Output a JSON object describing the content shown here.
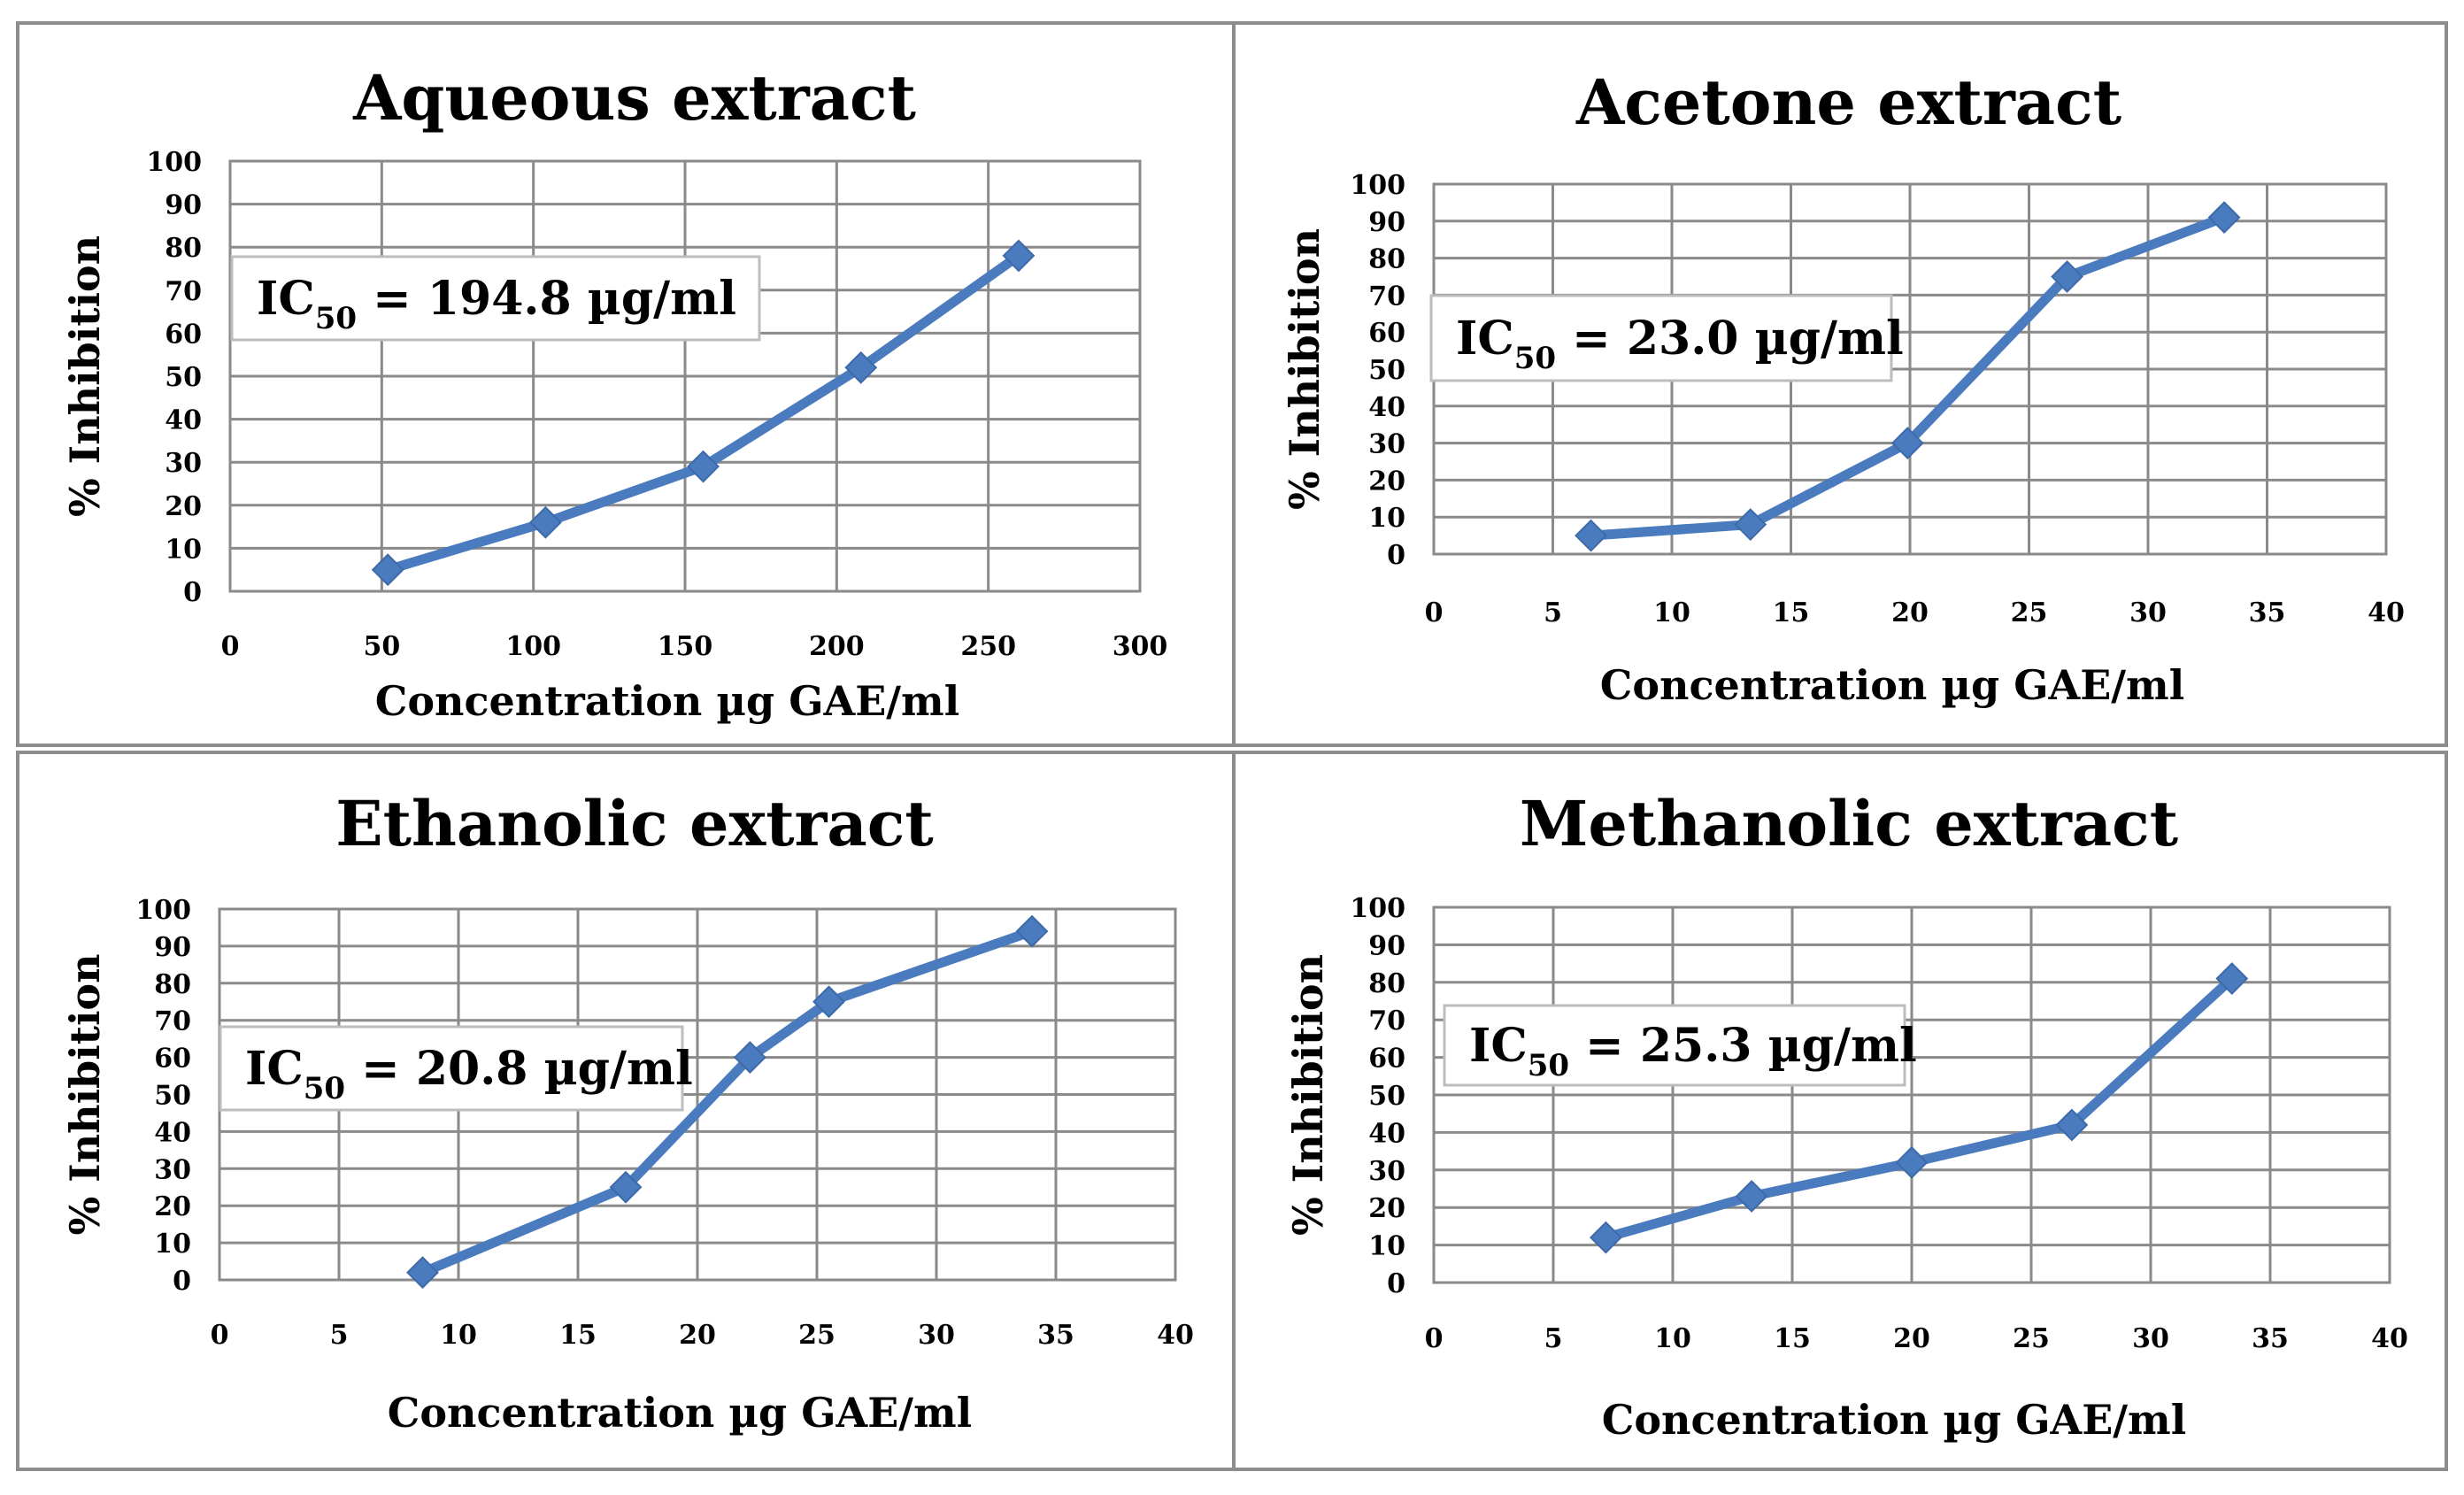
{
  "colors": {
    "series": "#4a7bbf",
    "grid": "#8a8a8a",
    "panel_border": "#8c8c8c"
  },
  "chart_data": [
    {
      "type": "line",
      "title": "Aqueous extract",
      "xlabel": "Concentration µg GAE/ml",
      "ylabel": "% Inhibition",
      "xlim": [
        0,
        300
      ],
      "ylim": [
        0,
        100
      ],
      "xticks": [
        0,
        50,
        100,
        150,
        200,
        250,
        300
      ],
      "yticks": [
        0,
        10,
        20,
        30,
        40,
        50,
        60,
        70,
        80,
        90,
        100
      ],
      "grid": true,
      "x": [
        52,
        104,
        156,
        208,
        260
      ],
      "y": [
        5,
        16,
        29,
        52,
        78
      ],
      "annotation": {
        "prefix": "IC",
        "sub": "50",
        "text": " = 194.8  µg/ml"
      }
    },
    {
      "type": "line",
      "title": "Acetone extract",
      "xlabel": "Concentration µg GAE/ml",
      "ylabel": "% Inhibition",
      "xlim": [
        0,
        40
      ],
      "ylim": [
        0,
        100
      ],
      "xticks": [
        0,
        5,
        10,
        15,
        20,
        25,
        30,
        35,
        40
      ],
      "yticks": [
        0,
        10,
        20,
        30,
        40,
        50,
        60,
        70,
        80,
        90,
        100
      ],
      "grid": true,
      "x": [
        6.6,
        13.3,
        19.9,
        26.6,
        33.2
      ],
      "y": [
        5,
        8,
        30,
        75,
        91
      ],
      "annotation": {
        "prefix": "IC",
        "sub": "50",
        "text": " = 23.0 µg/ml"
      }
    },
    {
      "type": "line",
      "title": "Ethanolic extract",
      "xlabel": "Concentration µg GAE/ml",
      "ylabel": "% Inhibition",
      "xlim": [
        0,
        40
      ],
      "ylim": [
        0,
        100
      ],
      "xticks": [
        0,
        5,
        10,
        15,
        20,
        25,
        30,
        35,
        40
      ],
      "yticks": [
        0,
        10,
        20,
        30,
        40,
        50,
        60,
        70,
        80,
        90,
        100
      ],
      "grid": true,
      "x": [
        8.5,
        17.0,
        22.2,
        25.5,
        34.0
      ],
      "y": [
        2,
        25,
        60,
        75,
        94
      ],
      "annotation": {
        "prefix": "IC",
        "sub": "50",
        "text": " = 20.8 µg/ml"
      }
    },
    {
      "type": "line",
      "title": "Methanolic extract",
      "xlabel": "Concentration µg GAE/ml",
      "ylabel": "% Inhibition",
      "xlim": [
        0,
        40
      ],
      "ylim": [
        0,
        100
      ],
      "xticks": [
        0,
        5,
        10,
        15,
        20,
        25,
        30,
        35,
        40
      ],
      "yticks": [
        0,
        10,
        20,
        30,
        40,
        50,
        60,
        70,
        80,
        90,
        100
      ],
      "grid": true,
      "x": [
        7.2,
        13.3,
        20.0,
        26.7,
        33.4
      ],
      "y": [
        12,
        23,
        32,
        42,
        81
      ],
      "annotation": {
        "prefix": "IC",
        "sub": "50",
        "text": " = 25.3 µg/ml"
      }
    }
  ]
}
